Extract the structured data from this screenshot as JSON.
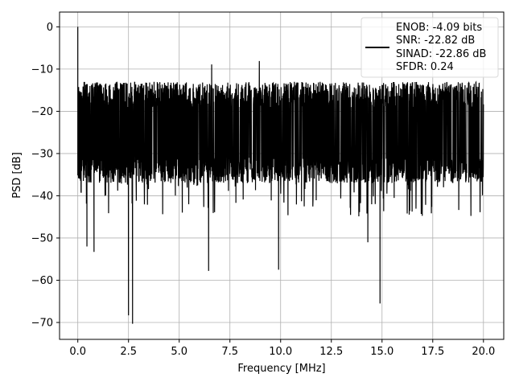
{
  "chart_data": {
    "type": "line",
    "title": "",
    "xlabel": "Frequency [MHz]",
    "ylabel": "PSD [dB]",
    "xlim": [
      -0.9,
      21.0
    ],
    "ylim": [
      -74,
      3.5
    ],
    "xticks": [
      0.0,
      2.5,
      5.0,
      7.5,
      10.0,
      12.5,
      15.0,
      17.5,
      20.0
    ],
    "xtick_labels": [
      "0.0",
      "2.5",
      "5.0",
      "7.5",
      "10.0",
      "12.5",
      "15.0",
      "17.5",
      "20.0"
    ],
    "yticks": [
      0,
      -10,
      -20,
      -30,
      -40,
      -50,
      -60,
      -70
    ],
    "ytick_labels": [
      "0",
      "−10",
      "−20",
      "−30",
      "−40",
      "−50",
      "−60",
      "−70"
    ],
    "grid": true,
    "legend_position": "top-right",
    "legend_lines": [
      "ENOB: -4.09 bits",
      "SNR: -22.82 dB",
      "SINAD: -22.86 dB",
      "SFDR: 0.24"
    ],
    "series": [
      {
        "color": "#000000",
        "x_range": [
          0.0,
          20.0
        ],
        "peak": {
          "x": 0.0,
          "y": 0.0
        },
        "envelope_upper_db": -13,
        "envelope_lower_db": -37,
        "notable_minima": [
          {
            "x": 2.5,
            "y": -68.3
          },
          {
            "x": 2.7,
            "y": -70.3
          },
          {
            "x": 6.45,
            "y": -57.8
          },
          {
            "x": 9.9,
            "y": -57.5
          },
          {
            "x": 14.9,
            "y": -65.5
          },
          {
            "x": 0.8,
            "y": -53.3
          },
          {
            "x": 0.45,
            "y": -52.0
          },
          {
            "x": 14.3,
            "y": -51.0
          }
        ],
        "notable_maxima": [
          {
            "x": 8.95,
            "y": -8.1
          },
          {
            "x": 6.6,
            "y": -8.9
          }
        ]
      }
    ]
  }
}
